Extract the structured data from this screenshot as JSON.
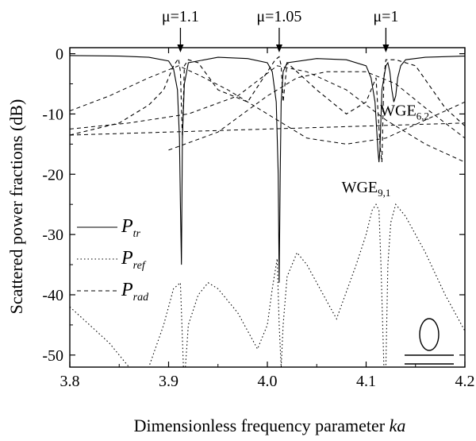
{
  "chart_data": {
    "type": "line",
    "xlabel": "Dimensionless frequency parameter",
    "xlabel_var": "ka",
    "ylabel": "Scattered power fractions (dB)",
    "xlim": [
      3.8,
      4.2
    ],
    "ylim": [
      -52,
      1
    ],
    "xticks": [
      "3.8",
      "3.9",
      "4.0",
      "4.1",
      "4.2"
    ],
    "yticks": [
      "0",
      "-10",
      "-20",
      "-30",
      "-40",
      "-50"
    ],
    "legend_position": "left",
    "series": [
      {
        "name": "P_tr",
        "legend_main": "P",
        "legend_sub": "tr",
        "style": "solid",
        "x": [
          3.8,
          3.85,
          3.88,
          3.9,
          3.905,
          3.909,
          3.911,
          3.912,
          3.913,
          3.914,
          3.916,
          3.92,
          3.95,
          3.98,
          4.0,
          4.005,
          4.009,
          4.011,
          4.012,
          4.013,
          4.014,
          4.016,
          4.02,
          4.05,
          4.08,
          4.1,
          4.105,
          4.109,
          4.112,
          4.113,
          4.114,
          4.116,
          4.12,
          4.122,
          4.124,
          4.126,
          4.128,
          4.13,
          4.132,
          4.135,
          4.14,
          4.16,
          4.2
        ],
        "y": [
          -0.3,
          -0.4,
          -0.6,
          -1.2,
          -2.5,
          -6,
          -14,
          -25,
          -35,
          -14,
          -5,
          -1.5,
          -0.6,
          -0.8,
          -1.5,
          -3,
          -8,
          -20,
          -38,
          -20,
          -8,
          -3,
          -1.5,
          -0.8,
          -1.0,
          -2.0,
          -4,
          -8,
          -16,
          -18,
          -16,
          -6,
          -2,
          -1.5,
          -3,
          -6,
          -8,
          -7,
          -4,
          -2,
          -1,
          -0.6,
          -0.4
        ]
      },
      {
        "name": "P_ref",
        "legend_main": "P",
        "legend_sub": "ref",
        "style": "dotted",
        "x": [
          3.8,
          3.82,
          3.84,
          3.86,
          3.88,
          3.895,
          3.905,
          3.912,
          3.915,
          3.917,
          3.92,
          3.93,
          3.94,
          3.95,
          3.97,
          3.99,
          4.0,
          4.005,
          4.01,
          4.012,
          4.014,
          4.016,
          4.02,
          4.03,
          4.04,
          4.05,
          4.07,
          4.09,
          4.1,
          4.106,
          4.11,
          4.113,
          4.115,
          4.118,
          4.12,
          4.122,
          4.125,
          4.13,
          4.14,
          4.16,
          4.18,
          4.2
        ],
        "y": [
          -42,
          -45,
          -48,
          -52,
          -52,
          -45,
          -39,
          -38,
          -52,
          -52,
          -45,
          -40,
          -38,
          -39,
          -43,
          -49,
          -45,
          -39,
          -34,
          -45,
          -52,
          -45,
          -37,
          -33,
          -35,
          -38,
          -44,
          -35,
          -30,
          -26,
          -25,
          -26,
          -35,
          -52,
          -52,
          -35,
          -28,
          -25,
          -27,
          -33,
          -40,
          -46
        ]
      },
      {
        "name": "P_rad",
        "legend_main": "P",
        "legend_sub": "rad",
        "style": "dashed",
        "x": [
          3.8,
          3.85,
          3.88,
          3.895,
          3.905,
          3.91,
          3.912,
          3.914,
          3.916,
          3.92,
          3.93,
          3.95,
          3.98,
          4.0,
          4.008,
          4.012,
          4.014,
          4.016,
          4.02,
          4.03,
          4.05,
          4.08,
          4.1,
          4.11,
          4.114,
          4.116,
          4.118,
          4.12,
          4.13,
          4.15,
          4.18,
          4.2
        ],
        "y": [
          -13.5,
          -11.5,
          -8.5,
          -6,
          -2,
          -0.8,
          -3,
          -14,
          -2,
          -1,
          -1.5,
          -6,
          -8,
          -3,
          -1,
          -0.5,
          -2,
          -8,
          -1.5,
          -3,
          -6,
          -10,
          -8,
          -4,
          -15,
          -18,
          -4,
          -1,
          -1,
          -2,
          -9,
          -12
        ]
      }
    ],
    "background_curves": [
      {
        "x": [
          3.8,
          3.84,
          3.88,
          3.91,
          3.93,
          3.96,
          4.0,
          4.04,
          4.08,
          4.12,
          4.16,
          4.2
        ],
        "y": [
          -9.5,
          -7,
          -4,
          -2,
          -3.5,
          -6,
          -10,
          -14,
          -15,
          -14,
          -11,
          -8
        ]
      },
      {
        "x": [
          3.8,
          3.86,
          3.92,
          3.97,
          4.01,
          4.04,
          4.08,
          4.12,
          4.16,
          4.2
        ],
        "y": [
          -12.5,
          -11.5,
          -10,
          -7,
          -2,
          -3,
          -6,
          -11,
          -15,
          -18
        ]
      },
      {
        "x": [
          3.9,
          3.95,
          4.0,
          4.03,
          4.06,
          4.1,
          4.13,
          4.16,
          4.2
        ],
        "y": [
          -16,
          -13,
          -7,
          -4,
          -3,
          -3,
          -5,
          -9,
          -14
        ]
      },
      {
        "x": [
          3.8,
          3.9,
          4.0,
          4.1,
          4.2
        ],
        "y": [
          -13.5,
          -13,
          -12.5,
          -12,
          -11.5
        ]
      }
    ],
    "markers": [
      {
        "label": "μ=1.1",
        "x": 3.912
      },
      {
        "label": "μ=1.05",
        "x": 4.012
      },
      {
        "label": "μ=1",
        "x": 4.12
      }
    ],
    "annotations": [
      {
        "main": "WGE",
        "sub": "6,2",
        "x": 4.139,
        "y": -10.3
      },
      {
        "main": "WGE",
        "sub": "9,1",
        "x": 4.1,
        "y": -23.0
      }
    ]
  }
}
